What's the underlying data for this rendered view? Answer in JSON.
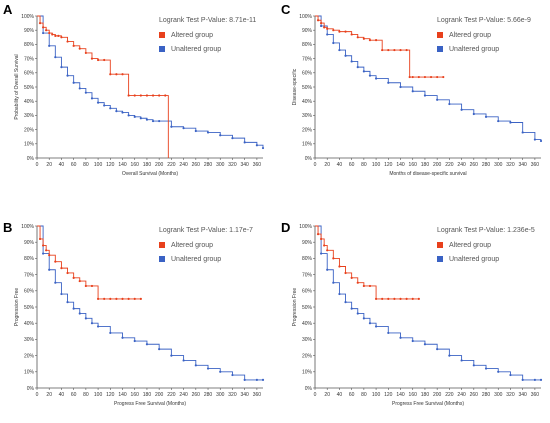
{
  "colors": {
    "altered": "#e8401c",
    "unaltered": "#3a62c4",
    "axis": "#555555",
    "panel_label": "#000000"
  },
  "chart_data": [
    {
      "panel_label": "A",
      "type": "line",
      "title": "Logrank Test P-Value: 8.71e-11",
      "xlabel": "Overall Survival (Months)",
      "ylabel": "Probability of Overall Survival",
      "xlim": [
        0,
        370
      ],
      "ylim": [
        0,
        100
      ],
      "x_ticks": [
        "0",
        "20",
        "40",
        "60",
        "80",
        "100",
        "120",
        "140",
        "160",
        "180",
        "200",
        "220",
        "240",
        "260",
        "280",
        "300",
        "320",
        "340",
        "360"
      ],
      "y_ticks": [
        "0%",
        "10%",
        "20%",
        "30%",
        "40%",
        "50%",
        "60%",
        "70%",
        "80%",
        "90%",
        "100%"
      ],
      "grid": false,
      "legend_position": "top-right",
      "series": [
        {
          "name": "Altered group",
          "color": "#e8401c",
          "x": [
            0,
            5,
            10,
            15,
            20,
            25,
            30,
            35,
            40,
            50,
            60,
            70,
            80,
            90,
            100,
            110,
            120,
            130,
            140,
            150,
            160,
            170,
            180,
            190,
            200,
            210,
            215
          ],
          "y": [
            100,
            95,
            92,
            90,
            88,
            87,
            86,
            86,
            85,
            82,
            79,
            77,
            74,
            70,
            69,
            69,
            59,
            59,
            59,
            44,
            44,
            44,
            44,
            44,
            44,
            44,
            0
          ]
        },
        {
          "name": "Unaltered group",
          "color": "#3a62c4",
          "x": [
            0,
            10,
            20,
            30,
            40,
            50,
            60,
            70,
            80,
            90,
            100,
            110,
            120,
            130,
            140,
            150,
            160,
            170,
            180,
            190,
            200,
            220,
            240,
            260,
            280,
            300,
            320,
            340,
            360,
            370
          ],
          "y": [
            100,
            88,
            79,
            71,
            64,
            58,
            53,
            49,
            46,
            42,
            39,
            37,
            35,
            33,
            32,
            30,
            29,
            28,
            27,
            26,
            26,
            22,
            21,
            19,
            18,
            16,
            14,
            11,
            9,
            7
          ]
        }
      ]
    },
    {
      "panel_label": "C",
      "type": "line",
      "title": "Logrank Test P-Value: 5.66e-9",
      "xlabel": "Months of disease-specific survival",
      "ylabel": "Disease-specific",
      "xlim": [
        0,
        370
      ],
      "ylim": [
        0,
        100
      ],
      "x_ticks": [
        "0",
        "20",
        "40",
        "60",
        "80",
        "100",
        "120",
        "140",
        "160",
        "180",
        "200",
        "220",
        "240",
        "260",
        "280",
        "300",
        "320",
        "340",
        "360"
      ],
      "y_ticks": [
        "0%",
        "10%",
        "20%",
        "30%",
        "40%",
        "50%",
        "60%",
        "70%",
        "80%",
        "90%",
        "100%"
      ],
      "grid": false,
      "legend_position": "top-right",
      "series": [
        {
          "name": "Altered group",
          "color": "#e8401c",
          "x": [
            0,
            5,
            10,
            15,
            20,
            30,
            40,
            50,
            60,
            70,
            80,
            90,
            100,
            110,
            120,
            130,
            140,
            150,
            155,
            160,
            170,
            180,
            190,
            200,
            210
          ],
          "y": [
            100,
            97,
            95,
            92,
            91,
            90,
            89,
            89,
            87,
            85,
            84,
            83,
            83,
            76,
            76,
            76,
            76,
            76,
            57,
            57,
            57,
            57,
            57,
            57,
            57
          ]
        },
        {
          "name": "Unaltered group",
          "color": "#3a62c4",
          "x": [
            0,
            10,
            20,
            30,
            40,
            50,
            60,
            70,
            80,
            90,
            100,
            120,
            140,
            160,
            180,
            200,
            220,
            240,
            260,
            280,
            300,
            320,
            340,
            360,
            370
          ],
          "y": [
            100,
            93,
            87,
            81,
            76,
            72,
            68,
            64,
            61,
            58,
            56,
            53,
            50,
            47,
            44,
            41,
            38,
            34,
            31,
            29,
            26,
            25,
            18,
            13,
            12
          ]
        }
      ]
    },
    {
      "panel_label": "B",
      "type": "line",
      "title": "Logrank Test P-Value: 1.17e-7",
      "xlabel": "Progress Free Survival (Months)",
      "ylabel": "Progression Free",
      "xlim": [
        0,
        370
      ],
      "ylim": [
        0,
        100
      ],
      "x_ticks": [
        "0",
        "20",
        "40",
        "60",
        "80",
        "100",
        "120",
        "140",
        "160",
        "180",
        "200",
        "220",
        "240",
        "260",
        "280",
        "300",
        "320",
        "340",
        "360"
      ],
      "y_ticks": [
        "0%",
        "10%",
        "20%",
        "30%",
        "40%",
        "50%",
        "60%",
        "70%",
        "80%",
        "90%",
        "100%"
      ],
      "grid": false,
      "legend_position": "top-right",
      "series": [
        {
          "name": "Altered group",
          "color": "#e8401c",
          "x": [
            0,
            5,
            10,
            15,
            20,
            30,
            40,
            50,
            60,
            70,
            80,
            90,
            100,
            110,
            120,
            130,
            140,
            150,
            160,
            170
          ],
          "y": [
            100,
            92,
            88,
            85,
            82,
            78,
            74,
            71,
            68,
            66,
            63,
            63,
            55,
            55,
            55,
            55,
            55,
            55,
            55,
            55
          ]
        },
        {
          "name": "Unaltered group",
          "color": "#3a62c4",
          "x": [
            0,
            10,
            20,
            30,
            40,
            50,
            60,
            70,
            80,
            90,
            100,
            120,
            140,
            160,
            180,
            200,
            220,
            240,
            260,
            280,
            300,
            320,
            340,
            360,
            370
          ],
          "y": [
            100,
            83,
            73,
            65,
            58,
            53,
            49,
            46,
            43,
            40,
            38,
            34,
            31,
            29,
            27,
            24,
            20,
            17,
            14,
            12,
            10,
            8,
            5,
            5,
            5
          ]
        }
      ]
    },
    {
      "panel_label": "D",
      "type": "line",
      "title": "Logrank Test P-Value: 1.236e-5",
      "xlabel": "Progress Free Survival (Months)",
      "ylabel": "Progression Free",
      "xlim": [
        0,
        370
      ],
      "ylim": [
        0,
        100
      ],
      "x_ticks": [
        "0",
        "20",
        "40",
        "60",
        "80",
        "100",
        "120",
        "140",
        "160",
        "180",
        "200",
        "220",
        "240",
        "260",
        "280",
        "300",
        "320",
        "340",
        "360"
      ],
      "y_ticks": [
        "0%",
        "10%",
        "20%",
        "30%",
        "40%",
        "50%",
        "60%",
        "70%",
        "80%",
        "90%",
        "100%"
      ],
      "grid": false,
      "legend_position": "top-right",
      "series": [
        {
          "name": "Altered group",
          "color": "#e8401c",
          "x": [
            0,
            5,
            10,
            15,
            20,
            30,
            40,
            50,
            60,
            70,
            80,
            90,
            100,
            110,
            120,
            130,
            140,
            150,
            160,
            170
          ],
          "y": [
            100,
            95,
            92,
            88,
            85,
            80,
            75,
            71,
            68,
            65,
            63,
            63,
            55,
            55,
            55,
            55,
            55,
            55,
            55,
            55
          ]
        },
        {
          "name": "Unaltered group",
          "color": "#3a62c4",
          "x": [
            0,
            10,
            20,
            30,
            40,
            50,
            60,
            70,
            80,
            90,
            100,
            120,
            140,
            160,
            180,
            200,
            220,
            240,
            260,
            280,
            300,
            320,
            340,
            360,
            370
          ],
          "y": [
            100,
            83,
            73,
            65,
            58,
            53,
            49,
            46,
            43,
            40,
            38,
            34,
            31,
            29,
            27,
            24,
            20,
            17,
            14,
            12,
            10,
            8,
            5,
            5,
            5
          ]
        }
      ]
    }
  ]
}
